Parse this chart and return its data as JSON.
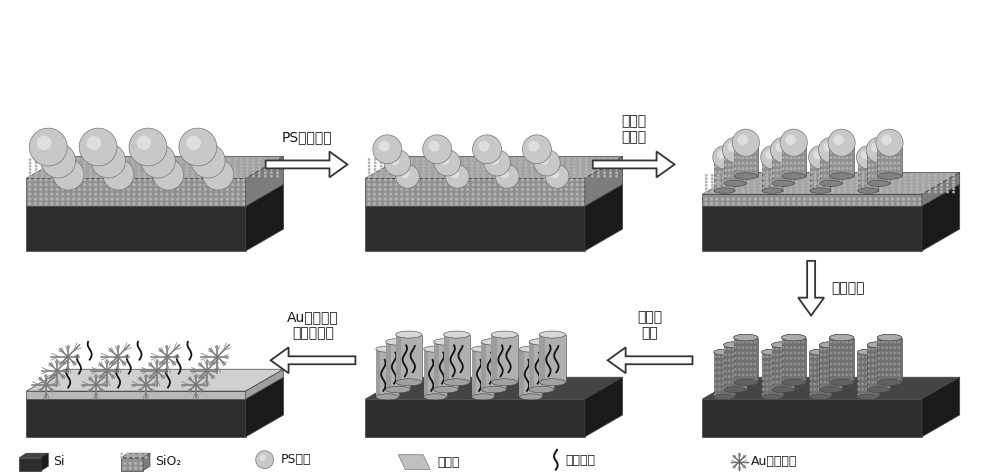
{
  "bg_color": "#ffffff",
  "si_color": "#2d2d2d",
  "si_top_color": "#444444",
  "si_side_color": "#1a1a1a",
  "sio2_color": "#909090",
  "sio2_top_color": "#b0b0b0",
  "sio2_side_color": "#707070",
  "ps_ball_color": "#c8c8c8",
  "ps_ball_highlight": "#e8e8e8",
  "pillar_face": "#909090",
  "pillar_top": "#c0c0c0",
  "si_pillar_face": "#707070",
  "si_pillar_top": "#aaaaaa",
  "metal_pillar_face": "#b0b0b0",
  "metal_pillar_top": "#d8d8d8",
  "au_nano_color": "#888888",
  "text_color": "#1a1a1a",
  "arrow_fill": "#ffffff",
  "arrow_edge": "#333333",
  "step1_label": "PS小球刻蚀",
  "step2_label_line1": "氧化硬",
  "step2_label_line2": "柱刻蚀",
  "step3_label": "硬柱刻蚀",
  "step4_label_line1": "金属层",
  "step4_label_line2": "沉积",
  "step5_label_line1": "Au纳米结构",
  "step5_label_line2": "电化学沉积",
  "legend_si": "Si",
  "legend_sio2": "SiO₂",
  "legend_ps": "PS小球",
  "legend_metal": "金属层",
  "legend_thiol": "疏基分子",
  "legend_au": "Au纳米结构",
  "font_size_label": 10,
  "font_size_legend": 9
}
